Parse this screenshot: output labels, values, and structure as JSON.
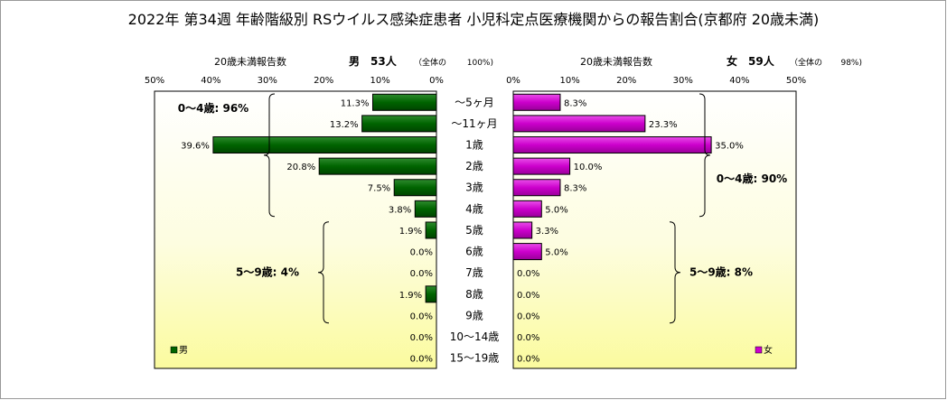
{
  "title": "2022年 第34週 年齢階級別 RSウイルス感染症患者 小児科定点医療機関からの報告割合(京都府 20歳未満)",
  "chart_data": {
    "type": "bar",
    "orientation": "horizontal",
    "categories": [
      "～5ヶ月",
      "～11ヶ月",
      "1歳",
      "2歳",
      "3歳",
      "4歳",
      "5歳",
      "6歳",
      "7歳",
      "8歳",
      "9歳",
      "10～14歳",
      "15～19歳"
    ],
    "series": [
      {
        "name": "男",
        "color": "#006400",
        "values": [
          11.3,
          13.2,
          39.6,
          20.8,
          7.5,
          3.8,
          1.9,
          0.0,
          0.0,
          1.9,
          0.0,
          0.0,
          0.0
        ],
        "header_label": "20歳未満報告数",
        "header_count": "男　53人",
        "header_share_label": "（全体の",
        "header_share_value": "100%)",
        "groups": [
          {
            "label": "0～4歳: 96%",
            "from": 0,
            "to": 5
          },
          {
            "label": "5～9歳: 4%",
            "from": 6,
            "to": 10
          }
        ]
      },
      {
        "name": "女",
        "color": "#CC00CC",
        "values": [
          8.3,
          23.3,
          35.0,
          10.0,
          8.3,
          5.0,
          3.3,
          5.0,
          0.0,
          0.0,
          0.0,
          0.0,
          0.0
        ],
        "header_label": "20歳未満報告数",
        "header_count": "女　59人",
        "header_share_label": "（全体の",
        "header_share_value": "98%)",
        "groups": [
          {
            "label": "0～4歳: 90%",
            "from": 0,
            "to": 5
          },
          {
            "label": "5～9歳: 8%",
            "from": 6,
            "to": 10
          }
        ]
      }
    ],
    "xlim": [
      0,
      50
    ],
    "xticks": [
      0,
      10,
      20,
      30,
      40,
      50
    ],
    "tick_suffix": "%",
    "value_suffix": "%",
    "legend_position": "bottom-left / bottom-right",
    "grid": false
  }
}
